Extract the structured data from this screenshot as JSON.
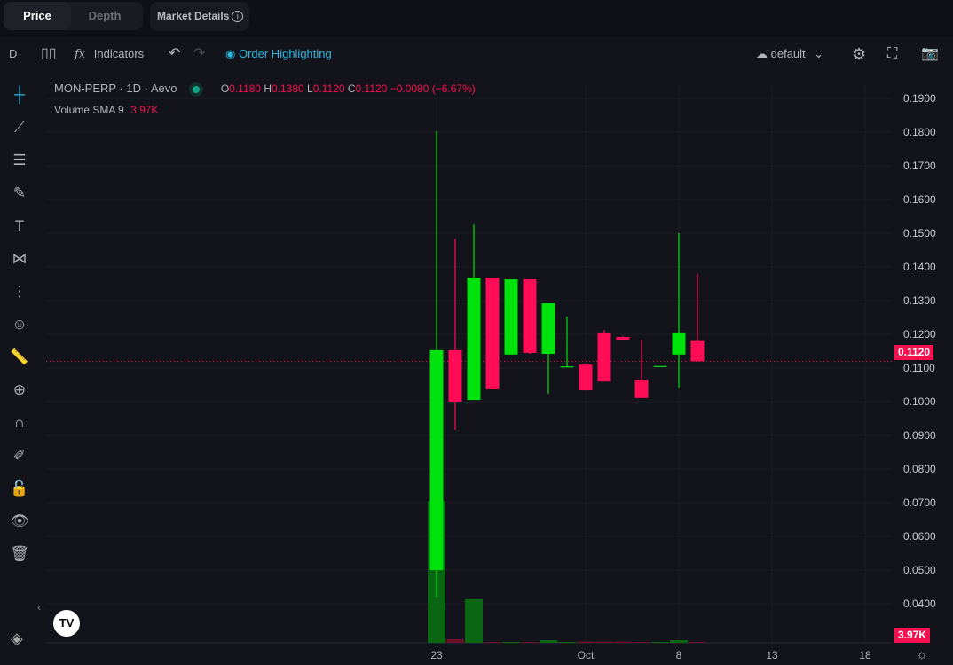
{
  "top_tabs": [
    {
      "label": "Price",
      "active": true
    },
    {
      "label": "Depth",
      "active": false
    }
  ],
  "market_details": {
    "label": "Market Details",
    "icon": "info-icon"
  },
  "toolbar": {
    "interval": "D",
    "indicators": "Indicators",
    "order_highlighting": "Order Highlighting",
    "layout": "default"
  },
  "legend": {
    "symbol": "MON-PERP · 1D · Aevo",
    "o_label": "O",
    "o": "0.1180",
    "h_label": "H",
    "h": "0.1380",
    "l_label": "L",
    "l": "0.1120",
    "c_label": "C",
    "c": "0.1120",
    "change": "−0.0080 (−6.67%)",
    "volume_label": "Volume SMA 9",
    "volume_value": "3.97K"
  },
  "colors": {
    "up": "#00e20b",
    "down": "#ff0c57",
    "vol_up": "#0b6614",
    "vol_down": "#6a0e2a",
    "accent": "#2bb8e0"
  },
  "left_tools": [
    "crosshair-icon",
    "trend-line-icon",
    "fib-icon",
    "brush-icon",
    "text-icon",
    "pattern-icon",
    "forecast-icon",
    "emoji-icon",
    "ruler-icon",
    "zoom-in-icon",
    "magnet-icon",
    "lock-drawing-icon",
    "unlock-icon",
    "eye-icon",
    "trash-icon"
  ],
  "chart_data": {
    "type": "candlestick",
    "y_ticks": [
      "0.1900",
      "0.1800",
      "0.1700",
      "0.1600",
      "0.1500",
      "0.1400",
      "0.1300",
      "0.1200",
      "0.1100",
      "0.1000",
      "0.0900",
      "0.0800",
      "0.0700",
      "0.0600",
      "0.0500",
      "0.0400"
    ],
    "ylim": [
      0.03,
      0.19
    ],
    "x_ticks": [
      {
        "label": "23",
        "index": 0
      },
      {
        "label": "Oct",
        "index": 8
      },
      {
        "label": "8",
        "index": 13
      },
      {
        "label": "13",
        "index": 18
      },
      {
        "label": "18",
        "index": 23
      }
    ],
    "candles": [
      {
        "o": 0.05,
        "h": 0.1803,
        "l": 0.042,
        "c": 0.1153,
        "v": 320
      },
      {
        "o": 0.1153,
        "h": 0.1484,
        "l": 0.0916,
        "c": 0.1,
        "v": 8
      },
      {
        "o": 0.1005,
        "h": 0.1526,
        "l": 0.1005,
        "c": 0.1368,
        "v": 100
      },
      {
        "o": 0.1368,
        "h": 0.1368,
        "l": 0.1037,
        "c": 0.1037,
        "v": 2
      },
      {
        "o": 0.114,
        "h": 0.1363,
        "l": 0.114,
        "c": 0.1363,
        "v": 2
      },
      {
        "o": 0.1363,
        "h": 0.1363,
        "l": 0.1142,
        "c": 0.1145,
        "v": 2
      },
      {
        "o": 0.1142,
        "h": 0.1292,
        "l": 0.1024,
        "c": 0.1292,
        "v": 6
      },
      {
        "o": 0.1103,
        "h": 0.1253,
        "l": 0.1103,
        "c": 0.1105,
        "v": 2
      },
      {
        "o": 0.111,
        "h": 0.111,
        "l": 0.1034,
        "c": 0.1034,
        "v": 3
      },
      {
        "o": 0.1203,
        "h": 0.1213,
        "l": 0.106,
        "c": 0.106,
        "v": 3
      },
      {
        "o": 0.1192,
        "h": 0.1195,
        "l": 0.1182,
        "c": 0.1182,
        "v": 3
      },
      {
        "o": 0.1063,
        "h": 0.1184,
        "l": 0.1011,
        "c": 0.1011,
        "v": 2
      },
      {
        "o": 0.1105,
        "h": 0.1105,
        "l": 0.1105,
        "c": 0.1106,
        "v": 2
      },
      {
        "o": 0.114,
        "h": 0.15,
        "l": 0.104,
        "c": 0.1203,
        "v": 6
      },
      {
        "o": 0.118,
        "h": 0.138,
        "l": 0.112,
        "c": 0.112,
        "v": 2
      }
    ],
    "last_price": "0.1120",
    "volume_badge": "3.97K"
  }
}
